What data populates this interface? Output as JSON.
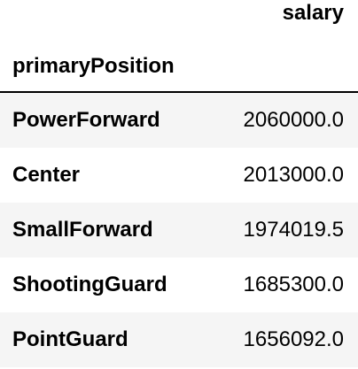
{
  "table": {
    "value_column": "salary",
    "index_name": "primaryPosition",
    "rows": [
      {
        "position": "PowerForward",
        "salary": "2060000.0"
      },
      {
        "position": "Center",
        "salary": "2013000.0"
      },
      {
        "position": "SmallForward",
        "salary": "1974019.5"
      },
      {
        "position": "ShootingGuard",
        "salary": "1685300.0"
      },
      {
        "position": "PointGuard",
        "salary": "1656092.0"
      }
    ]
  },
  "colors": {
    "background": "#ffffff",
    "stripe": "#f5f5f5",
    "text": "#000000",
    "rule": "#000000"
  }
}
